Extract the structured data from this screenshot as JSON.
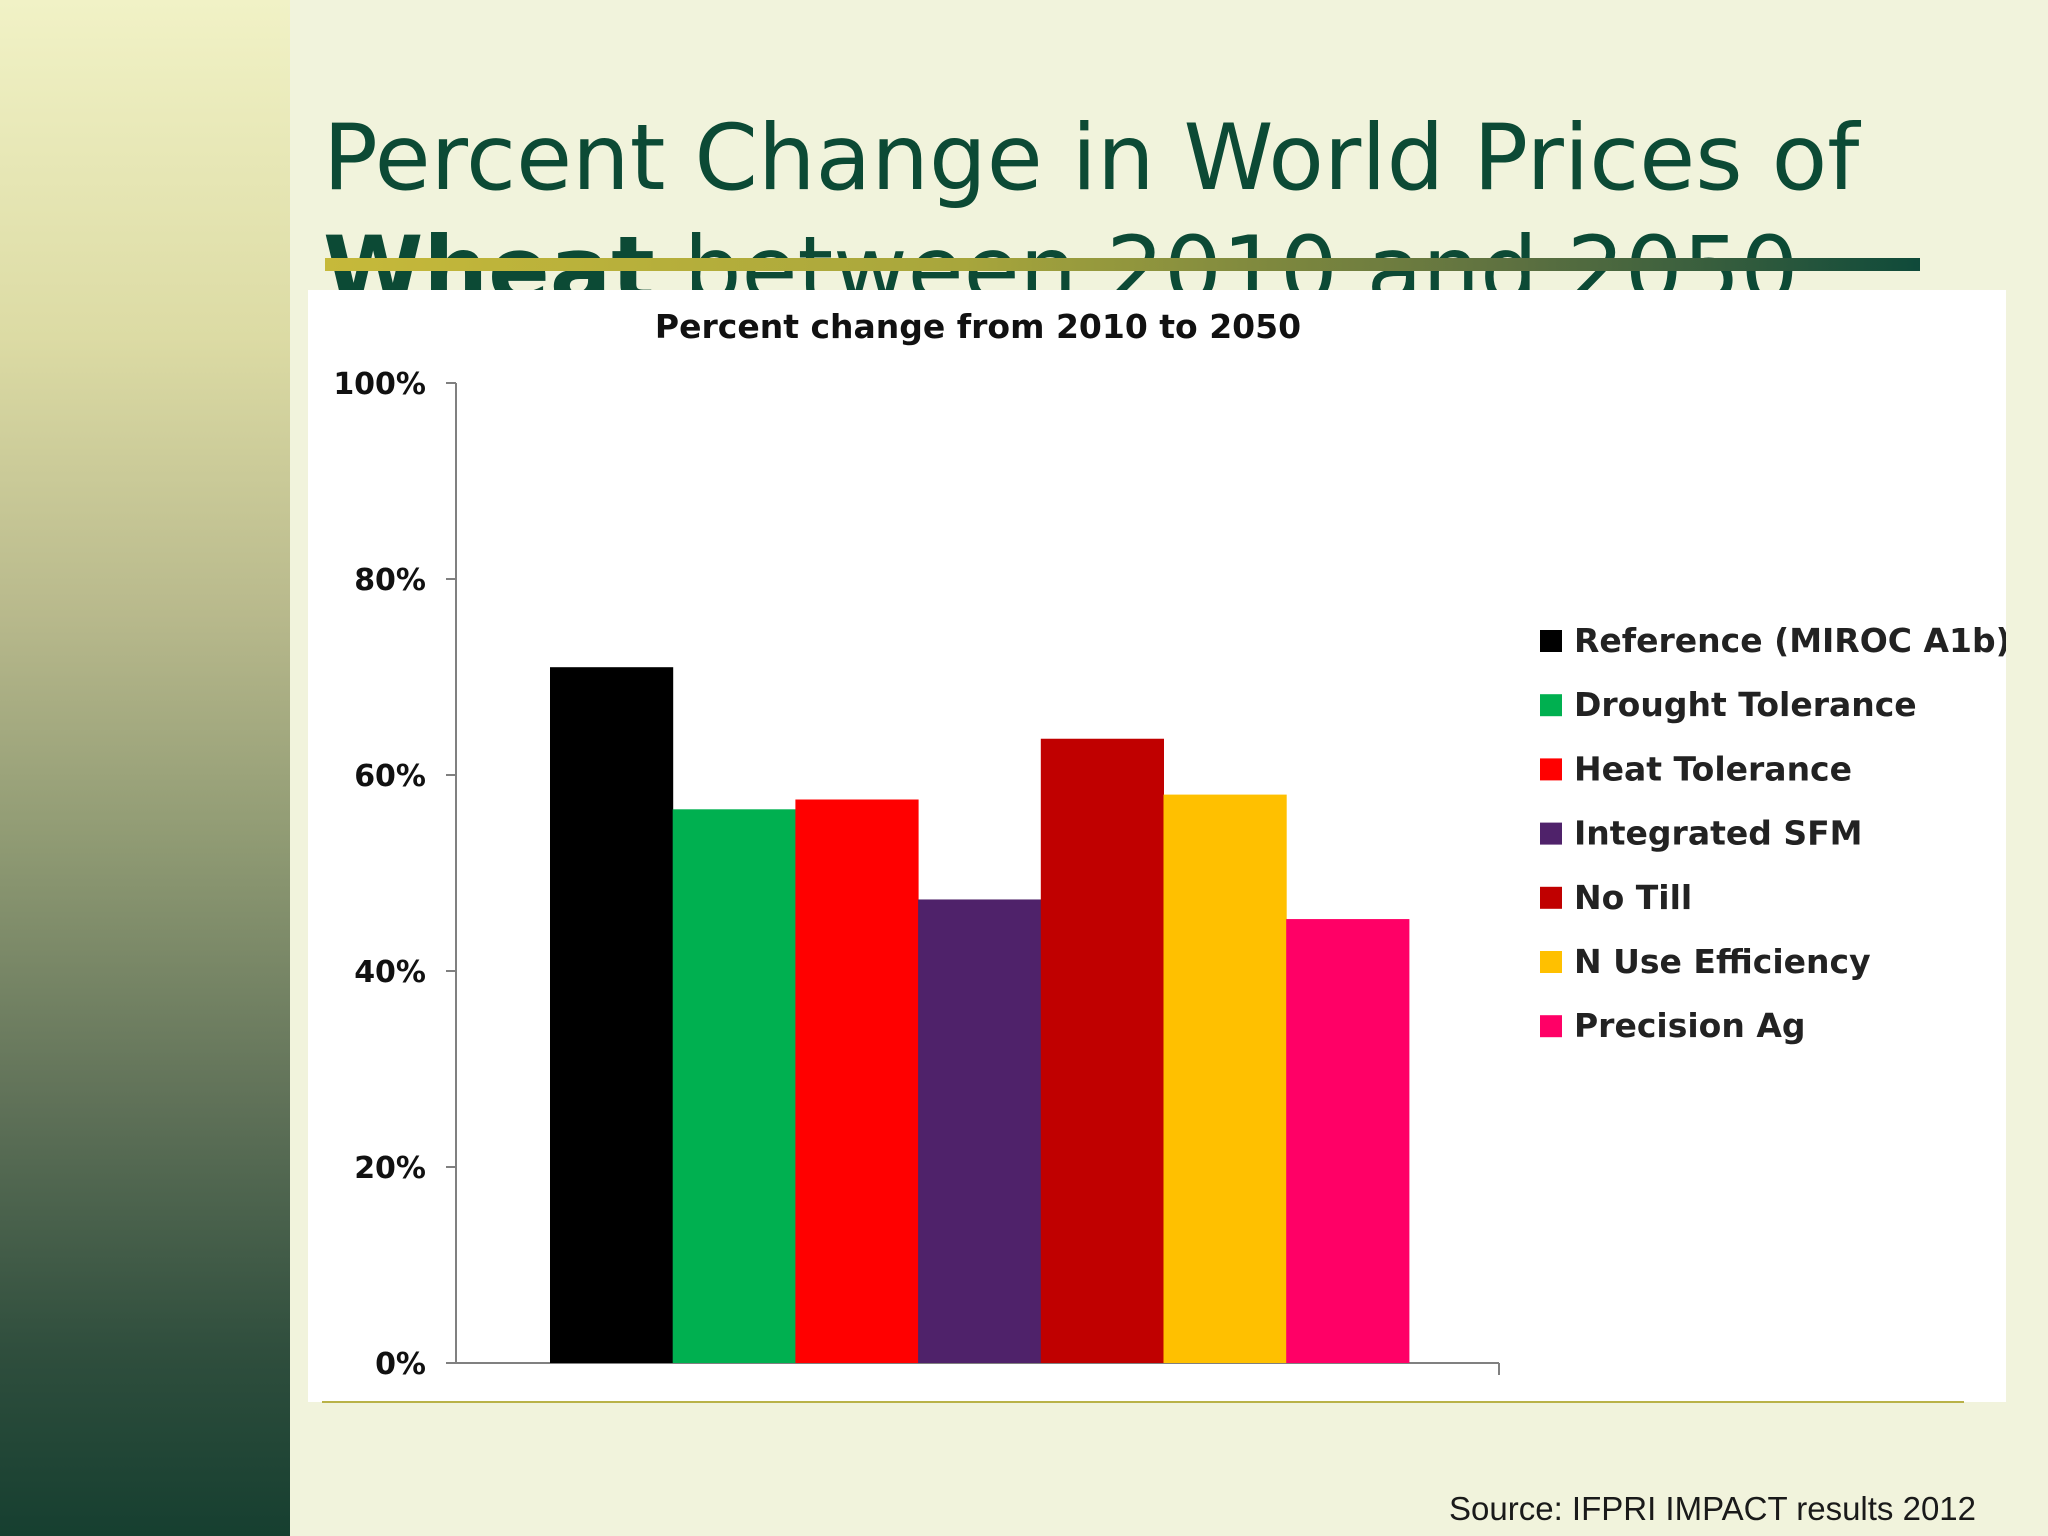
{
  "slide": {
    "title_line1": "Percent Change in World Prices of",
    "title_bold": "Wheat",
    "title_line2_rest": " between 2010 and 2050",
    "source": "Source: IFPRI IMPACT results 2012"
  },
  "colors": {
    "title": "#0c4a35",
    "background": "#f1f3dc"
  },
  "chart_data": {
    "type": "bar",
    "title": "Percent change from 2010 to 2050",
    "xlabel": "",
    "ylabel": "",
    "ylim": [
      0,
      100
    ],
    "y_ticks": [
      "0%",
      "20%",
      "40%",
      "60%",
      "80%",
      "100%"
    ],
    "y_tick_values": [
      0,
      20,
      40,
      60,
      80,
      100
    ],
    "legend_position": "right",
    "grid": false,
    "series": [
      {
        "name": "Reference (MIROC A1b)",
        "value": 71,
        "color": "#000000"
      },
      {
        "name": "Drought Tolerance",
        "value": 56.5,
        "color": "#00b050"
      },
      {
        "name": "Heat Tolerance",
        "value": 57.5,
        "color": "#ff0000"
      },
      {
        "name": "Integrated SFM",
        "value": 47.3,
        "color": "#4f226a"
      },
      {
        "name": "No Till",
        "value": 63.7,
        "color": "#c00000"
      },
      {
        "name": "N Use Efficiency",
        "value": 58,
        "color": "#ffc000"
      },
      {
        "name": "Precision Ag",
        "value": 45.3,
        "color": "#ff0066"
      }
    ]
  }
}
